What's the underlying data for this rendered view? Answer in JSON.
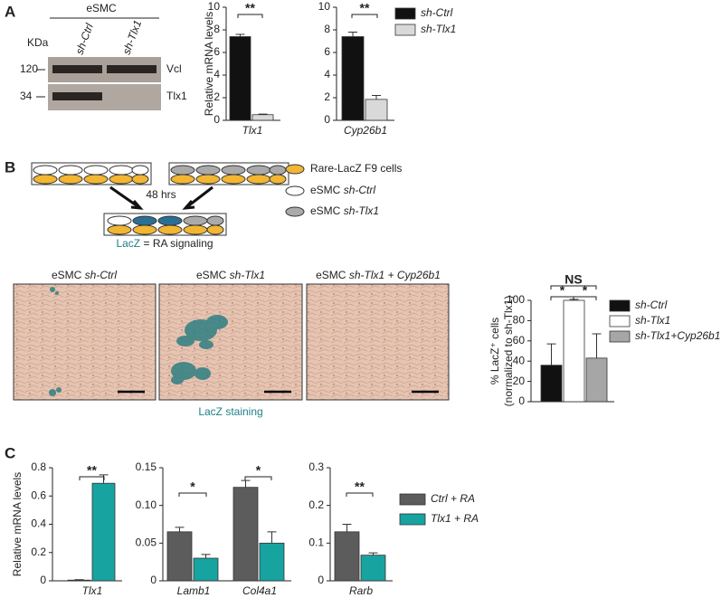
{
  "panel_labels": [
    "A",
    "B",
    "C"
  ],
  "blot": {
    "group": "eSMC",
    "lanes": [
      "sh-Ctrl",
      "sh-Tlx1"
    ],
    "unit": "KDa",
    "markers": [
      "120",
      "34"
    ],
    "bands": [
      "Vcl",
      "Tlx1"
    ]
  },
  "diagram": {
    "time": "48 hrs",
    "legend": [
      {
        "text": "Rare-LacZ F9 cells"
      },
      {
        "text": "eSMC",
        "italic": "sh-Ctrl"
      },
      {
        "text": "eSMC",
        "italic": "sh-Tlx1"
      }
    ],
    "caption": {
      "highlight": "LacZ",
      "text": "= RA signaling"
    }
  },
  "images": {
    "titles": [
      {
        "text": "eSMC",
        "italic": "sh-Ctrl"
      },
      {
        "text": "eSMC",
        "italic": "sh-Tlx1"
      },
      {
        "text": "eSMC",
        "italic": "sh-Tlx1 + Cyp26b1"
      }
    ],
    "caption": "LacZ staining"
  },
  "chart_data": [
    {
      "type": "bar",
      "y_label": "Relative mRNA levels",
      "categories": [
        "Tlx1"
      ],
      "series": [
        {
          "name": "sh-Ctrl",
          "color": "#111111",
          "values": [
            7.4
          ],
          "errors": [
            0.2
          ]
        },
        {
          "name": "sh-Tlx1",
          "color": "#d9d9d9",
          "values": [
            0.5
          ],
          "errors": [
            0.05
          ]
        }
      ],
      "ylim": [
        0,
        10
      ],
      "yticks": [
        0,
        2,
        4,
        6,
        8,
        10
      ],
      "annotations": [
        "**"
      ]
    },
    {
      "type": "bar",
      "categories": [
        "Cyp26b1"
      ],
      "series": [
        {
          "name": "sh-Ctrl",
          "color": "#111111",
          "values": [
            7.4
          ],
          "errors": [
            0.4
          ]
        },
        {
          "name": "sh-Tlx1",
          "color": "#d9d9d9",
          "values": [
            1.85
          ],
          "errors": [
            0.35
          ]
        }
      ],
      "ylim": [
        0,
        10
      ],
      "yticks": [
        0,
        2,
        4,
        6,
        8,
        10
      ],
      "annotations": [
        "**"
      ],
      "legend": true
    },
    {
      "type": "bar",
      "y_label": [
        "% LacZ⁺ cells",
        "(normalized to sh-Tlx1)"
      ],
      "categories": [
        null
      ],
      "series": [
        {
          "name": "sh-Ctrl",
          "color": "#111111",
          "values": [
            36
          ],
          "errors": [
            21
          ]
        },
        {
          "name": "sh-Tlx1",
          "color": "#ffffff",
          "values": [
            100
          ],
          "errors": [
            1
          ]
        },
        {
          "name": "sh-Tlx1+Cyp26b1",
          "color": "#a6a6a6",
          "values": [
            43
          ],
          "errors": [
            24
          ]
        }
      ],
      "ylim": [
        0,
        100
      ],
      "yticks": [
        0,
        20,
        40,
        60,
        80,
        100
      ],
      "annotations": [
        "NS",
        "*",
        "*"
      ],
      "legend": true
    },
    {
      "type": "bar",
      "y_label": "Relative mRNA levels",
      "categories": [
        "Tlx1"
      ],
      "series": [
        {
          "name": "Ctrl + RA",
          "color": "#5c5c5c",
          "values": [
            0.005
          ],
          "errors": [
            0.003
          ]
        },
        {
          "name": "Tlx1 + RA",
          "color": "#17a3a0",
          "values": [
            0.69
          ],
          "errors": [
            0.06
          ]
        }
      ],
      "ylim": [
        0,
        0.8
      ],
      "yticks": [
        0,
        0.2,
        0.4,
        0.6,
        0.8
      ],
      "annotations": [
        "**"
      ]
    },
    {
      "type": "bar",
      "categories": [
        "Lamb1",
        "Col4a1"
      ],
      "series": [
        {
          "name": "Ctrl + RA",
          "color": "#5c5c5c",
          "values": [
            0.065,
            0.124
          ],
          "errors": [
            0.006,
            0.009
          ]
        },
        {
          "name": "Tlx1 + RA",
          "color": "#17a3a0",
          "values": [
            0.03,
            0.05
          ],
          "errors": [
            0.005,
            0.015
          ]
        }
      ],
      "ylim": [
        0,
        0.15
      ],
      "yticks": [
        0,
        0.05,
        {
          "value": 0.1,
          "label": "0.10"
        },
        0.15
      ],
      "annotations": [
        "*",
        "*"
      ]
    },
    {
      "type": "bar",
      "categories": [
        "Rarb"
      ],
      "series": [
        {
          "name": "Ctrl + RA",
          "color": "#5c5c5c",
          "values": [
            0.13
          ],
          "errors": [
            0.02
          ]
        },
        {
          "name": "Tlx1 + RA",
          "color": "#17a3a0",
          "values": [
            0.068
          ],
          "errors": [
            0.006
          ]
        }
      ],
      "ylim": [
        0,
        0.3
      ],
      "yticks": [
        0,
        0.1,
        0.2,
        0.3
      ],
      "annotations": [
        "**"
      ],
      "legend": true
    }
  ]
}
